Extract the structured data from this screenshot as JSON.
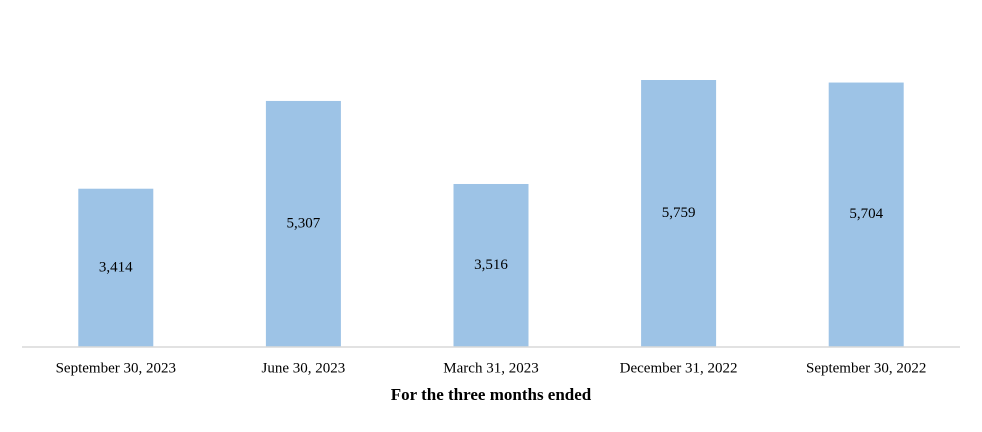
{
  "chart_data": {
    "type": "bar",
    "x_label": "For the three months ended",
    "categories": [
      "September 30, 2023",
      "June 30, 2023",
      "March 31, 2023",
      "December 31, 2022",
      "September 30, 2022"
    ],
    "values": [
      3414,
      5307,
      3516,
      5759,
      5704
    ],
    "value_labels": [
      "3,414",
      "5,307",
      "3,516",
      "5,759",
      "5,704"
    ],
    "color": "#9dc3e6"
  }
}
